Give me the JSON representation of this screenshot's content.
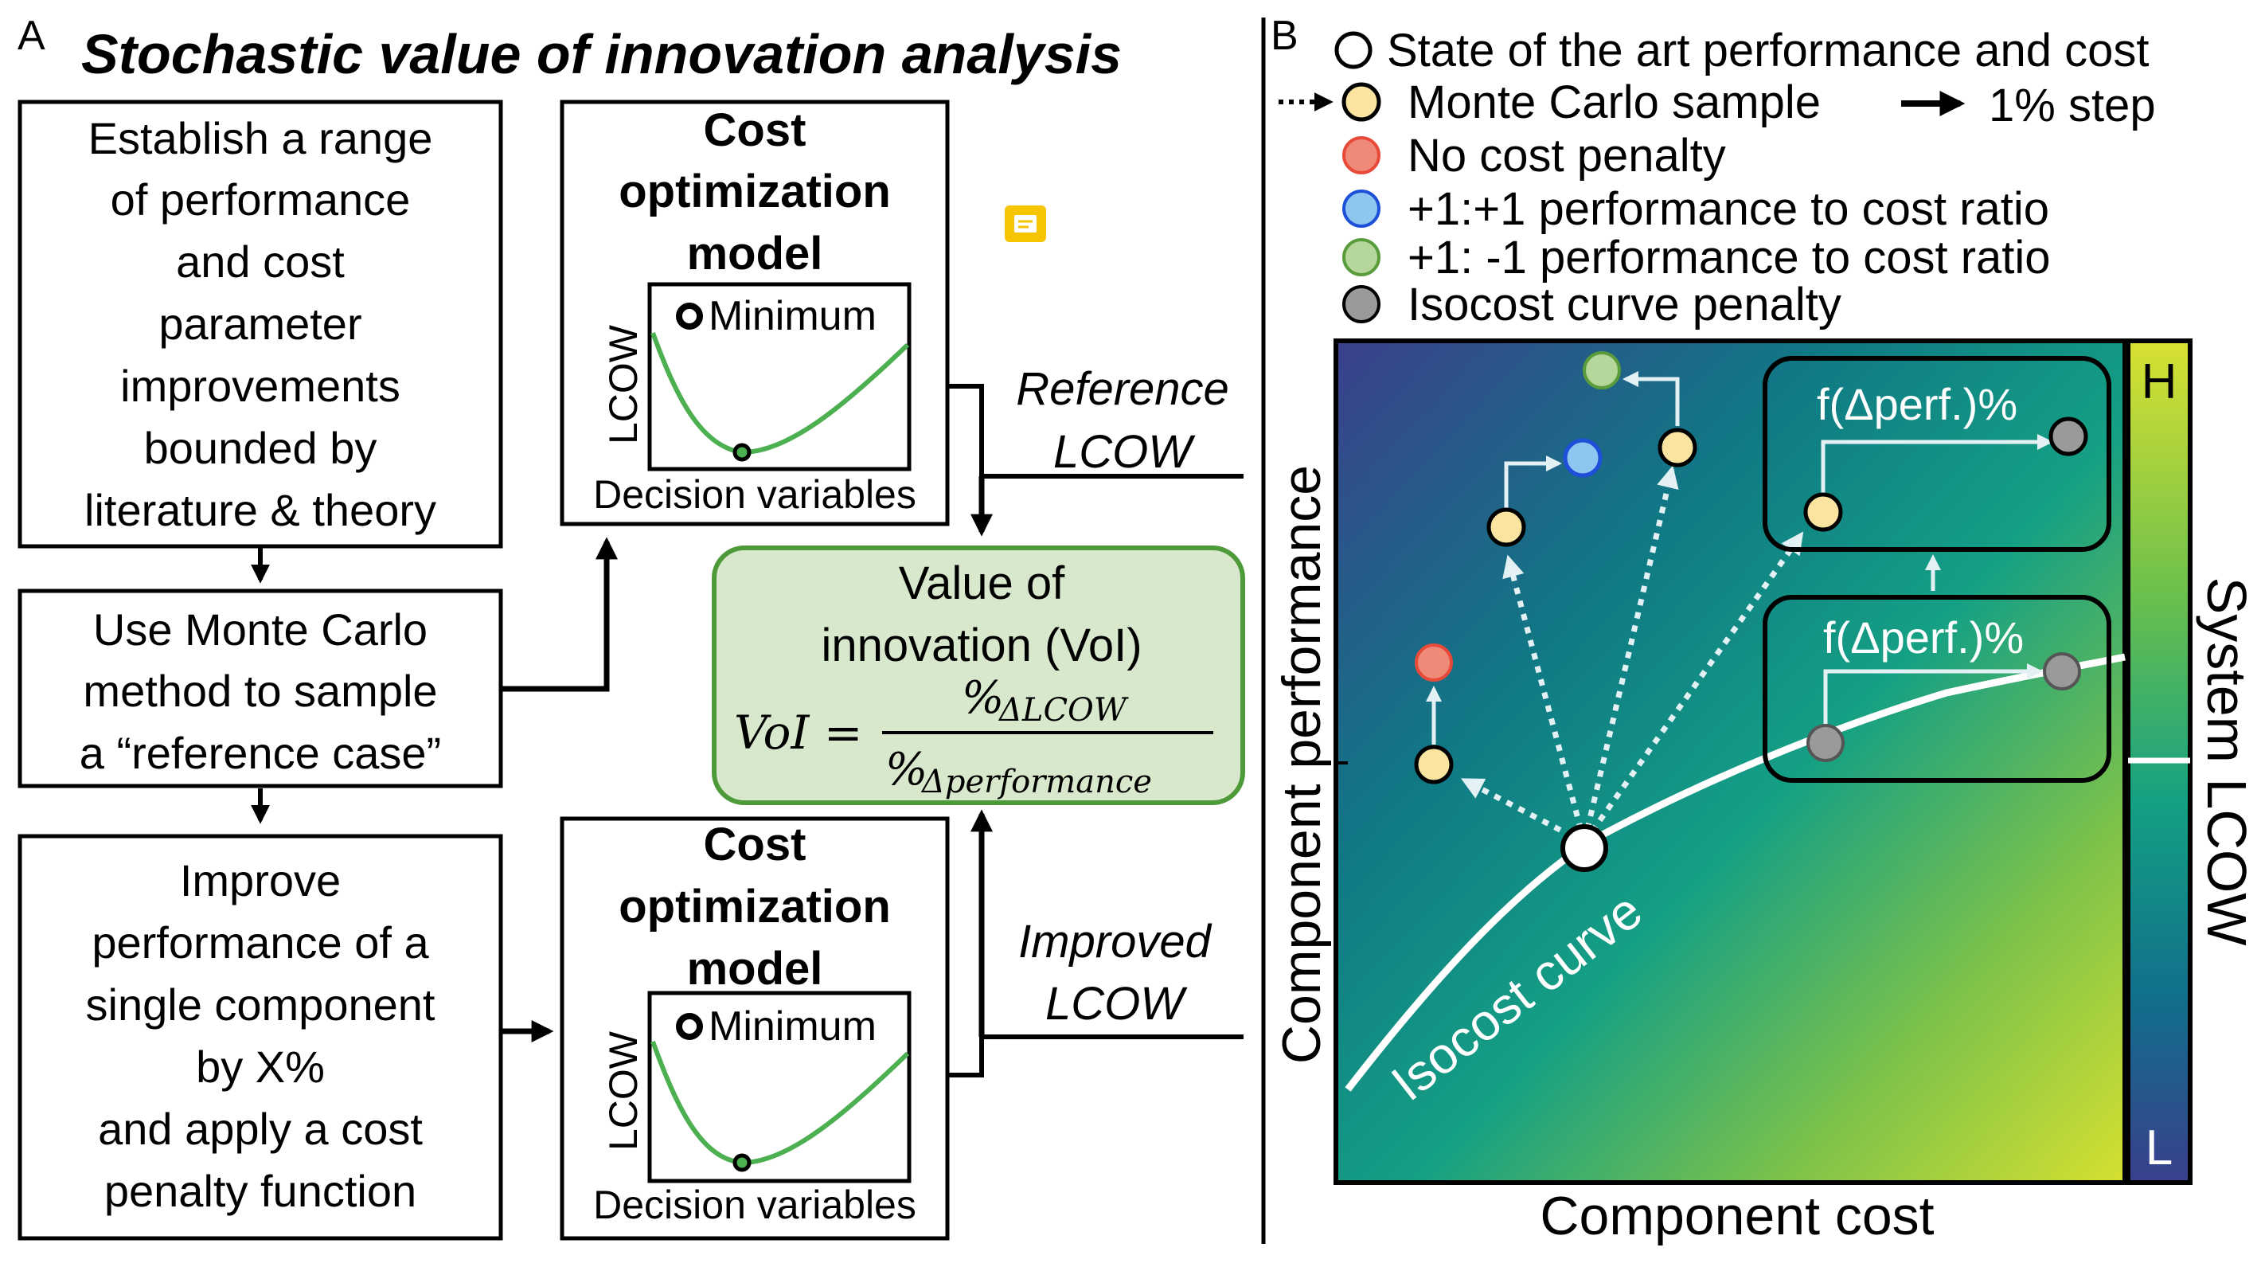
{
  "panel_a": {
    "letter": "A",
    "title": "Stochastic value of innovation analysis",
    "box1_lines": [
      "Establish a range",
      "of performance",
      "and cost",
      "parameter",
      "improvements",
      "bounded by",
      "literature & theory"
    ],
    "box2_lines": [
      "Use Monte Carlo",
      "method to sample",
      "a “reference case”"
    ],
    "box3_lines": [
      "Improve",
      "performance of a",
      "single component",
      "by X%",
      "and apply a cost",
      "penalty function"
    ],
    "opt_model_lines": [
      "Cost",
      "optimization",
      "model"
    ],
    "opt_legend": "Minimum",
    "opt_ylabel": "LCOW",
    "opt_xlabel": "Decision variables",
    "reference_lcow": [
      "Reference",
      "LCOW"
    ],
    "improved_lcow": [
      "Improved",
      "LCOW"
    ],
    "voi_title_lines": [
      "Value of",
      "innovation (VoI)"
    ],
    "voi_lhs": "VoI =",
    "voi_num": "%",
    "voi_num_sub": "ΔLCOW",
    "voi_den": "%",
    "voi_den_sub": "Δperformance",
    "voi_color": "#d8e8cc",
    "voi_border": "#4e9a3a"
  },
  "panel_b": {
    "letter": "B",
    "legend": {
      "soa": "State of the art performance and cost",
      "mc": "Monte Carlo sample",
      "step": "1% step",
      "no_penalty": "No cost penalty",
      "plus_plus": "+1:+1 performance to cost ratio",
      "plus_minus": "+1: -1 performance to cost ratio",
      "isocost": "Isocost curve penalty"
    },
    "xlabel": "Component cost",
    "ylabel": "Component performance",
    "isocost_label": "Isocost curve",
    "fperf_label": "f(Δperf.)%",
    "colorbar_label": "System LCOW",
    "colorbar_high": "H",
    "colorbar_low": "L",
    "marker_colors": {
      "mc": "#fbe3a0",
      "no_penalty": "#f08a78",
      "plus_plus": "#8fc6f0",
      "plus_minus": "#b5d79c",
      "isocost": "#9a9a9a"
    }
  }
}
